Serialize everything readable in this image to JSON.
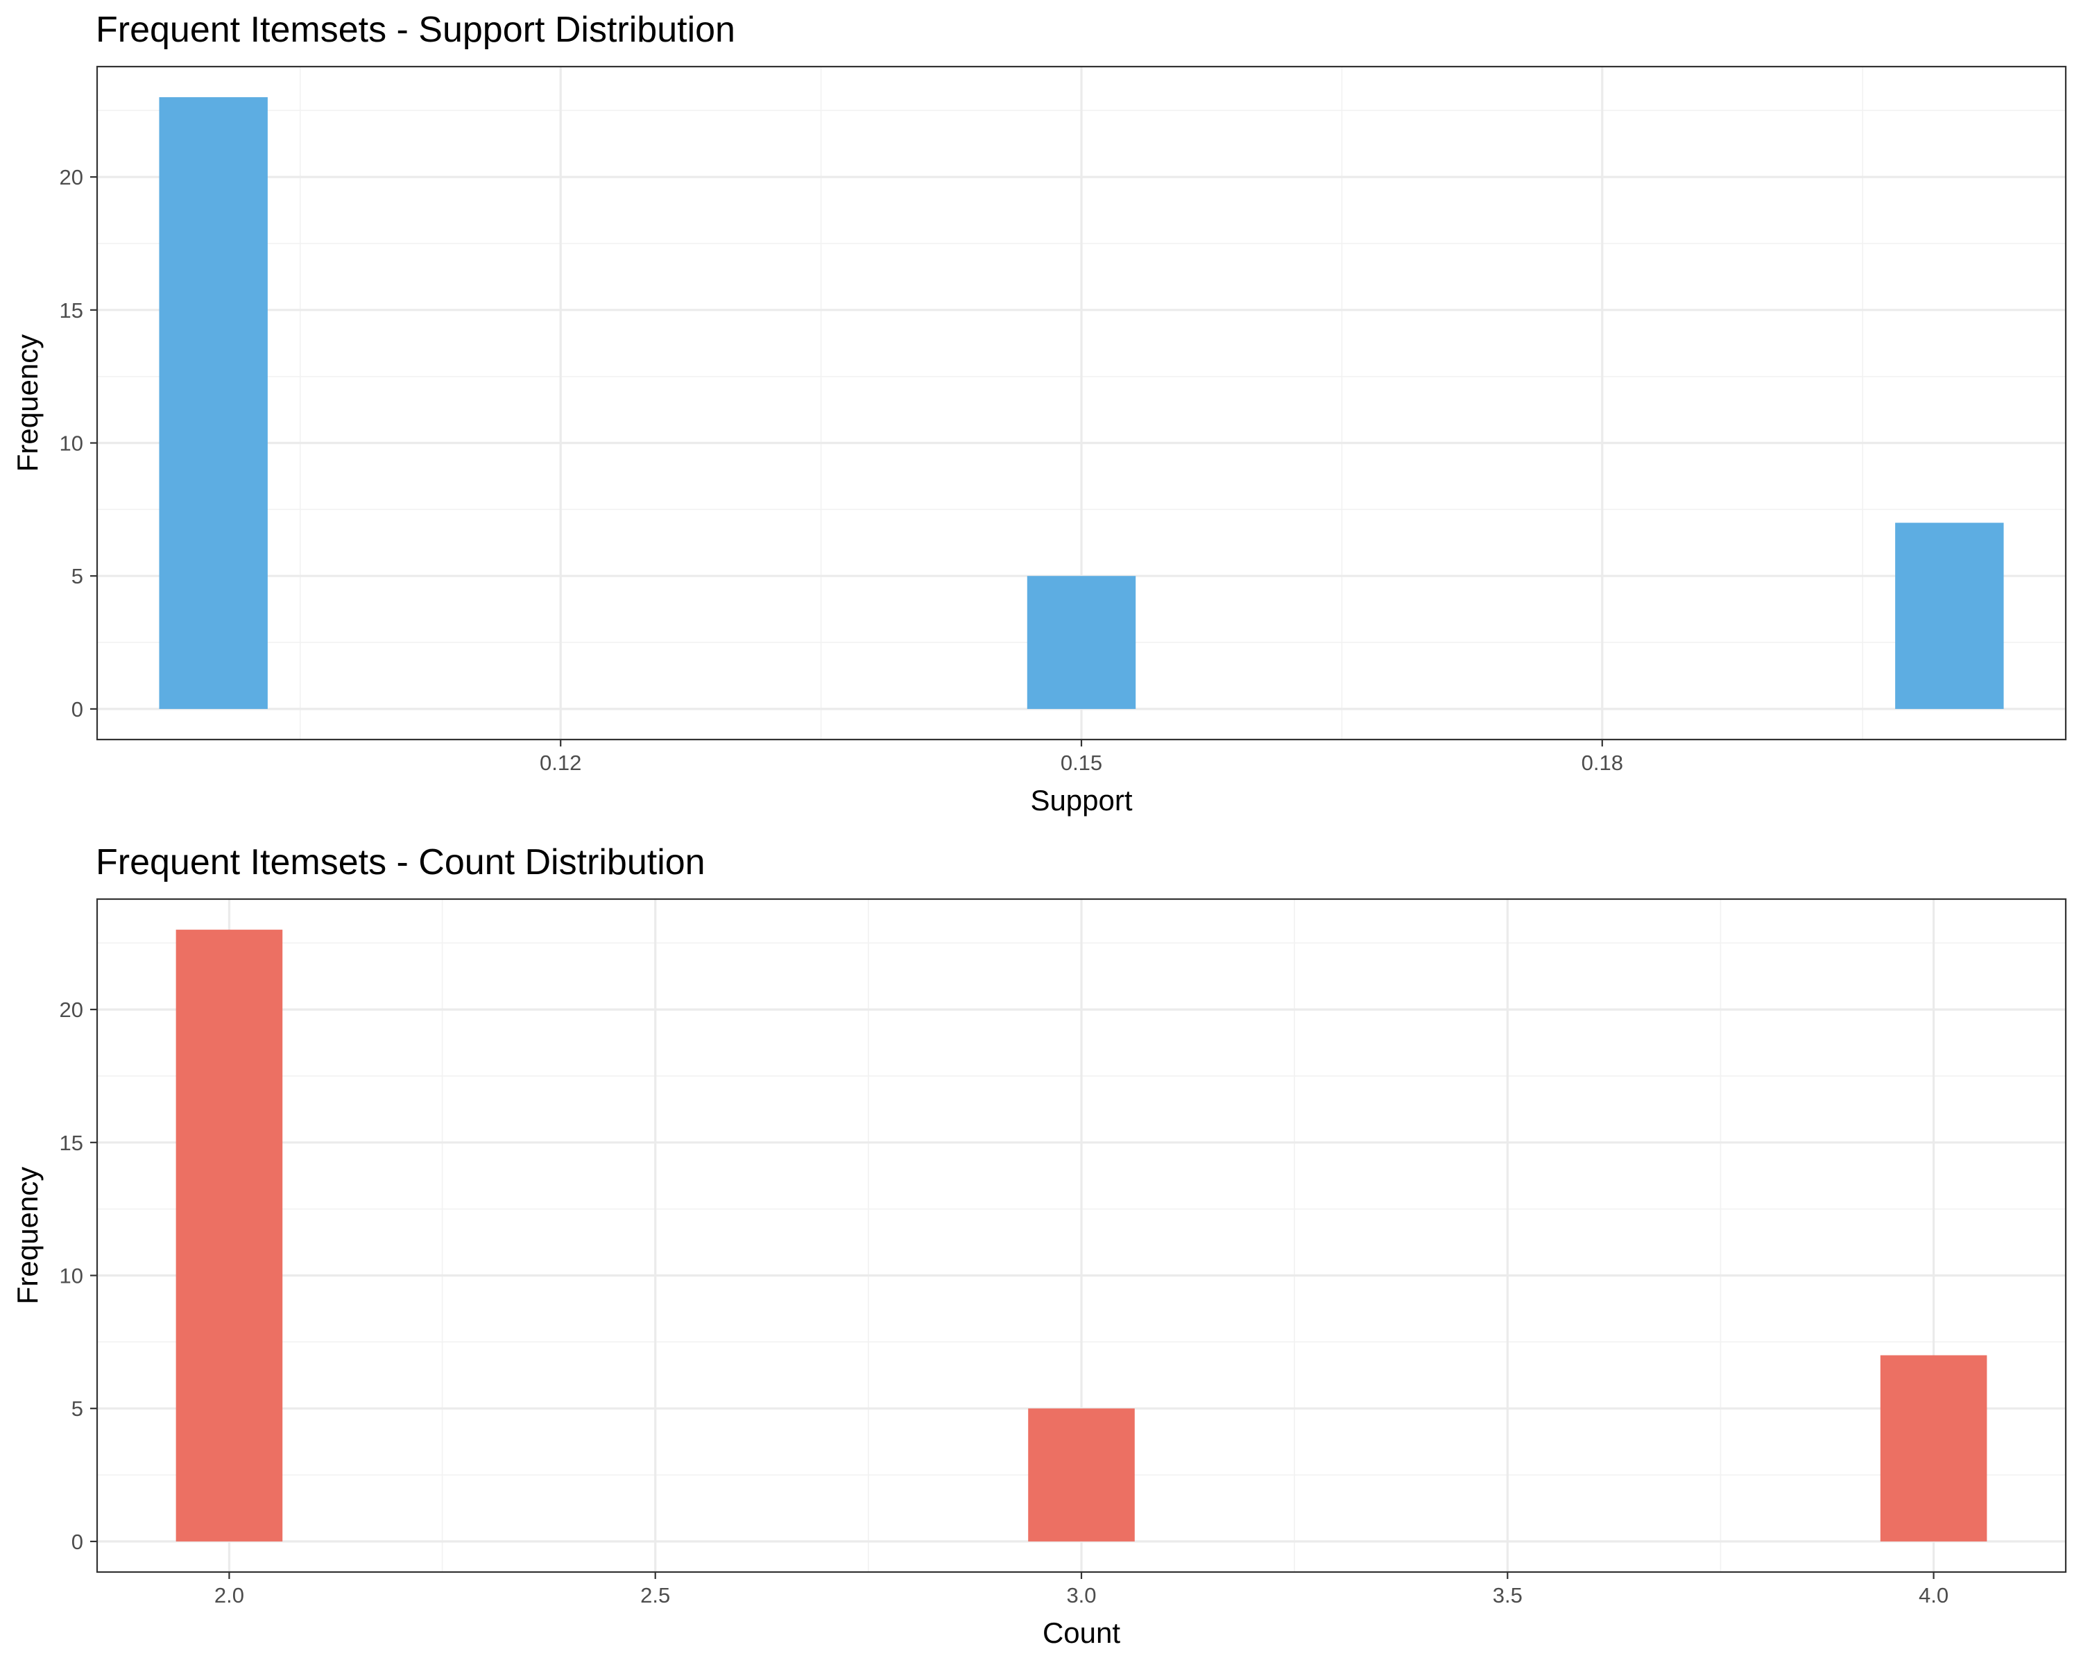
{
  "chart_data": [
    {
      "type": "bar",
      "title": "Frequent Itemsets - Support Distribution",
      "xlabel": "Support",
      "ylabel": "Frequency",
      "x": [
        0.1,
        0.15,
        0.2
      ],
      "values": [
        23,
        5,
        7
      ],
      "xlim": [
        0.0933,
        0.2067
      ],
      "ylim": [
        -1.15,
        24.15
      ],
      "x_major_ticks": [
        0.12,
        0.15,
        0.18
      ],
      "x_tick_labels": [
        "0.12",
        "0.15",
        "0.18"
      ],
      "x_minor_ticks": [
        0.105,
        0.135,
        0.165,
        0.195
      ],
      "y_major_ticks": [
        0,
        5,
        10,
        15,
        20
      ],
      "y_tick_labels": [
        "0",
        "5",
        "10",
        "15",
        "20"
      ],
      "y_minor_ticks": [
        2.5,
        7.5,
        12.5,
        17.5,
        22.5
      ],
      "bin_width": 0.005,
      "color": "#5DADE2",
      "grid": true
    },
    {
      "type": "bar",
      "title": "Frequent Itemsets - Count Distribution",
      "xlabel": "Count",
      "ylabel": "Frequency",
      "x": [
        2,
        3,
        4
      ],
      "values": [
        23,
        5,
        7
      ],
      "xlim": [
        1.845,
        4.155
      ],
      "ylim": [
        -1.15,
        24.15
      ],
      "x_major_ticks": [
        2.0,
        2.5,
        3.0,
        3.5,
        4.0
      ],
      "x_tick_labels": [
        "2.0",
        "2.5",
        "3.0",
        "3.5",
        "4.0"
      ],
      "x_minor_ticks": [
        2.25,
        2.75,
        3.25,
        3.75
      ],
      "y_major_ticks": [
        0,
        5,
        10,
        15,
        20
      ],
      "y_tick_labels": [
        "0",
        "5",
        "10",
        "15",
        "20"
      ],
      "y_minor_ticks": [
        2.5,
        7.5,
        12.5,
        17.5,
        22.5
      ],
      "bin_width": 0.1,
      "color": "#EC7063",
      "grid": true
    }
  ]
}
